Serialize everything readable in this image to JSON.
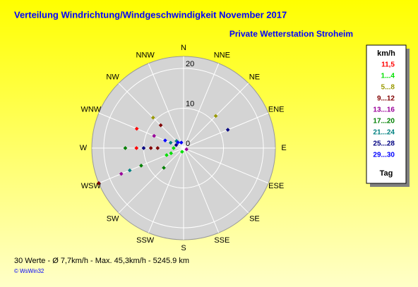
{
  "chart_data": {
    "type": "polar-scatter",
    "title": "Verteilung Windrichtung/Windgeschwindigkeit  November 2017",
    "subtitle": "Private Wetterstation Stroheim",
    "directions": [
      "N",
      "NNE",
      "NE",
      "ENE",
      "E",
      "ESE",
      "SE",
      "SSE",
      "S",
      "SSW",
      "SW",
      "WSW",
      "W",
      "WNW",
      "NW",
      "NNW"
    ],
    "rlim": [
      0,
      23
    ],
    "rticks": [
      0,
      10,
      20
    ],
    "legend_title": "km/h",
    "legend_footer": "Tag",
    "series": [
      {
        "name": "11,5",
        "color": "#ff0000",
        "x": [
          292.5,
          270
        ],
        "values": [
          12.7,
          11.8
        ]
      },
      {
        "name": "1...4",
        "color": "#00e000",
        "x": [
          247.5,
          247.5,
          270,
          202.5
        ],
        "values": [
          3.4,
          4.6,
          2.5,
          1
        ]
      },
      {
        "name": "5...8",
        "color": "#999900",
        "x": [
          315,
          45
        ],
        "values": [
          10.8,
          11.4
        ]
      },
      {
        "name": "9...12",
        "color": "#800000",
        "x": [
          315,
          247.5,
          270,
          270
        ],
        "values": [
          8.1,
          23,
          8.2,
          6.5
        ]
      },
      {
        "name": "13...16",
        "color": "#990099",
        "x": [
          292.5,
          247.5,
          112.5
        ],
        "values": [
          8,
          16.9,
          0.8
        ]
      },
      {
        "name": "17...20",
        "color": "#008000",
        "x": [
          270,
          247.5,
          225
        ],
        "values": [
          14.6,
          11.5,
          7
        ]
      },
      {
        "name": "21...24",
        "color": "#008080",
        "x": [
          247.5,
          292.5,
          315
        ],
        "values": [
          14.6,
          3.5,
          2.5
        ]
      },
      {
        "name": "25...28",
        "color": "#000080",
        "x": [
          67.5,
          270,
          292.5
        ],
        "values": [
          12,
          10,
          2
        ]
      },
      {
        "name": "29...30",
        "color": "#0000ff",
        "x": [
          292.5,
          315,
          337.5
        ],
        "values": [
          5,
          2,
          1.5
        ]
      }
    ],
    "footer": "30 Werte   -   Ø 7,7km/h  -  Max. 45,3km/h  -   5245.9 km",
    "copyright": "© WsWin32"
  }
}
